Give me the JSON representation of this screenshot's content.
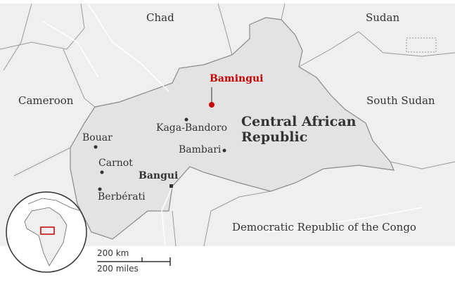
{
  "countries": {
    "chad": "Chad",
    "sudan": "Sudan",
    "cameroon": "Cameroon",
    "south_sudan": "South Sudan",
    "car": [
      "Central African",
      "Republic"
    ],
    "drc": "Democratic Republic of the Congo"
  },
  "cities": {
    "highlight": "Bamingui",
    "capital": "Bangui",
    "others": [
      "Kaga-Bandoro",
      "Bambari",
      "Bouar",
      "Carnot",
      "Berbérati"
    ]
  },
  "scale": {
    "km": "200 km",
    "miles": "200 miles"
  },
  "colors": {
    "highlight": "#c70000",
    "land": "#efefef",
    "focus_country": "#e3e3e3",
    "border": "#8a8a8a"
  }
}
